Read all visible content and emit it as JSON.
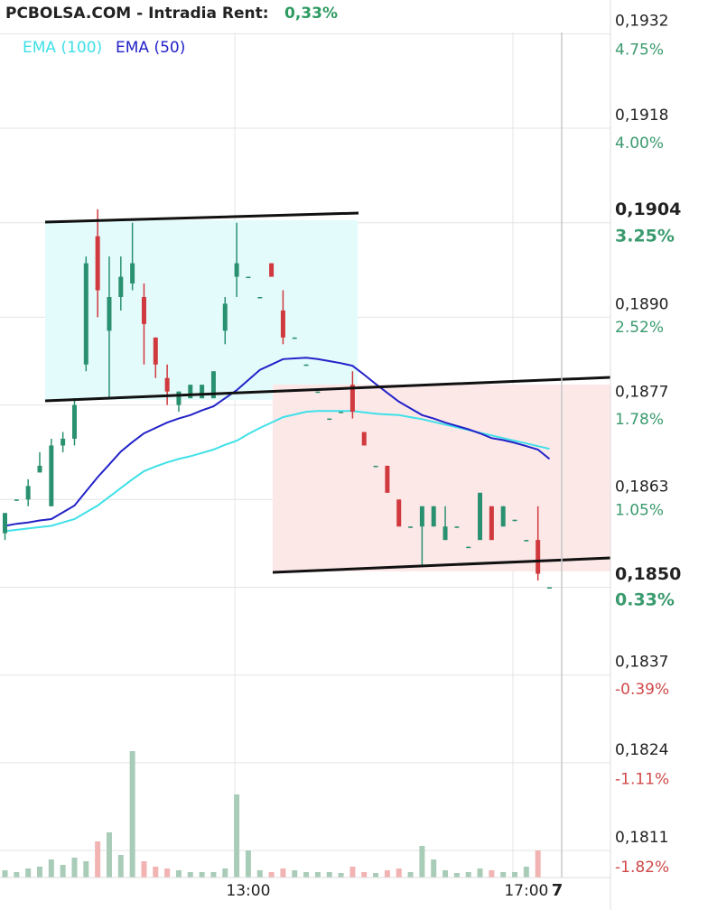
{
  "chart_data": {
    "type": "candlestick",
    "title": "PCBOLSA.COM - Intradia  Rent:",
    "subtitle": "0,33%",
    "cursor_label": "7",
    "categories": [
      null,
      null,
      null,
      null,
      null,
      null,
      null,
      null,
      null,
      null,
      null,
      null,
      null,
      null,
      null,
      null,
      null,
      null,
      null,
      null,
      null,
      "13:00",
      null,
      null,
      null,
      null,
      null,
      null,
      null,
      null,
      null,
      null,
      null,
      null,
      null,
      null,
      null,
      null,
      null,
      null,
      null,
      null,
      null,
      null,
      null,
      "17:00",
      null,
      null
    ],
    "ohlc": {
      "open": [
        0.1858,
        0.1863,
        0.1863,
        0.1867,
        0.1862,
        0.1871,
        0.1872,
        0.1883,
        0.1902,
        0.1888,
        0.1893,
        0.1895,
        0.1893,
        0.1887,
        0.1881,
        0.1877,
        0.1878,
        0.1878,
        0.1878,
        0.1888,
        0.1896,
        0.1896,
        0.1893,
        0.1898,
        0.1891,
        0.1887,
        0.1883,
        0.1879,
        0.1875,
        0.1876,
        0.188,
        0.1873,
        0.1868,
        0.1868,
        0.1863,
        0.1859,
        0.1859,
        0.1859,
        0.1857,
        0.1859,
        0.1856,
        0.1857,
        0.1862,
        0.1859,
        0.186,
        0.1857,
        0.1857,
        0.185
      ],
      "high": [
        0.1861,
        0.1863,
        0.1866,
        0.187,
        0.1872,
        0.1873,
        0.1878,
        0.1899,
        0.1906,
        0.1899,
        0.1899,
        0.1904,
        0.1895,
        0.1887,
        0.1883,
        0.1879,
        0.188,
        0.188,
        0.1882,
        0.1893,
        0.1904,
        0.1896,
        0.1893,
        0.1898,
        0.1894,
        0.1887,
        0.1883,
        0.1879,
        0.1875,
        0.1876,
        0.1882,
        0.1873,
        0.1868,
        0.1868,
        0.1863,
        0.1859,
        0.1862,
        0.1862,
        0.1862,
        0.1859,
        0.1856,
        0.1864,
        0.1862,
        0.1862,
        0.186,
        0.1857,
        0.1862,
        0.185
      ],
      "low": [
        0.1857,
        0.1863,
        0.1862,
        0.1867,
        0.1862,
        0.187,
        0.1871,
        0.1882,
        0.189,
        0.1878,
        0.1891,
        0.1894,
        0.1883,
        0.1881,
        0.1877,
        0.1876,
        0.1878,
        0.1878,
        0.1878,
        0.1886,
        0.1893,
        0.1896,
        0.1893,
        0.1896,
        0.1886,
        0.1887,
        0.1883,
        0.1879,
        0.1875,
        0.1876,
        0.1875,
        0.1871,
        0.1868,
        0.1864,
        0.1859,
        0.1859,
        0.1853,
        0.1859,
        0.1857,
        0.1859,
        0.1856,
        0.1857,
        0.1857,
        0.1859,
        0.186,
        0.1857,
        0.1851,
        0.185
      ],
      "close": [
        0.1861,
        0.1863,
        0.1865,
        0.1868,
        0.1871,
        0.1872,
        0.1877,
        0.1898,
        0.1894,
        0.1893,
        0.1896,
        0.1898,
        0.1889,
        0.1883,
        0.1879,
        0.1879,
        0.188,
        0.188,
        0.1882,
        0.1892,
        0.1898,
        0.1896,
        0.1893,
        0.1896,
        0.1887,
        0.1887,
        0.1883,
        0.1879,
        0.1875,
        0.1876,
        0.1876,
        0.1871,
        0.1868,
        0.1864,
        0.1859,
        0.1859,
        0.1862,
        0.1862,
        0.1859,
        0.1859,
        0.1856,
        0.1864,
        0.1857,
        0.1862,
        0.186,
        0.1857,
        0.1852,
        0.185
      ]
    },
    "up_color": "#2a9170",
    "down_color": "#d0393e",
    "series": [
      {
        "name": "EMA (100)",
        "color": "#3fe0e8",
        "values": [
          0.18583,
          0.18585,
          0.18587,
          0.18589,
          0.18591,
          0.18596,
          0.18601,
          0.18611,
          0.18621,
          0.18634,
          0.18647,
          0.1866,
          0.18672,
          0.18679,
          0.18685,
          0.1869,
          0.18694,
          0.18699,
          0.18704,
          0.18711,
          0.18717,
          0.18727,
          0.18736,
          0.18744,
          0.18752,
          0.18756,
          0.1876,
          0.18761,
          0.18761,
          0.18761,
          0.18761,
          0.18759,
          0.18757,
          0.18756,
          0.18755,
          0.18752,
          0.18749,
          0.18745,
          0.18741,
          0.18737,
          0.18733,
          0.18729,
          0.18725,
          0.18721,
          0.18717,
          0.18713,
          0.18709,
          0.18705
        ]
      },
      {
        "name": "EMA (50)",
        "color": "#2222c8",
        "values": [
          0.18591,
          0.18594,
          0.18596,
          0.18599,
          0.18601,
          0.18611,
          0.18621,
          0.18642,
          0.18663,
          0.18682,
          0.18701,
          0.18715,
          0.18728,
          0.18736,
          0.18744,
          0.1875,
          0.18755,
          0.18762,
          0.18768,
          0.1878,
          0.18792,
          0.18807,
          0.18822,
          0.1883,
          0.18838,
          0.18839,
          0.1884,
          0.18838,
          0.18835,
          0.18832,
          0.18828,
          0.18815,
          0.18801,
          0.18788,
          0.18775,
          0.18765,
          0.18755,
          0.1875,
          0.18744,
          0.18739,
          0.18734,
          0.18728,
          0.18721,
          0.18718,
          0.18714,
          0.18709,
          0.18704,
          0.1869
        ]
      }
    ],
    "volume": {
      "values": [
        8,
        6,
        10,
        12,
        20,
        14,
        22,
        18,
        40,
        50,
        25,
        140,
        18,
        12,
        10,
        8,
        6,
        6,
        6,
        10,
        92,
        30,
        8,
        6,
        10,
        8,
        6,
        6,
        6,
        5,
        12,
        6,
        5,
        8,
        10,
        6,
        35,
        20,
        8,
        5,
        6,
        10,
        8,
        6,
        6,
        12,
        30,
        0
      ],
      "ylim": [
        0,
        160
      ]
    },
    "ylim": [
      0.1807,
      0.1937
    ],
    "yticks": [
      {
        "value": 0.1932,
        "label": "0,1932"
      },
      {
        "value": 0.1918,
        "label": "0,1918"
      },
      {
        "value": 0.1904,
        "label": "0,1904"
      },
      {
        "value": 0.189,
        "label": "0,1890"
      },
      {
        "value": 0.1877,
        "label": "0,1877"
      },
      {
        "value": 0.1863,
        "label": "0,1863"
      },
      {
        "value": 0.185,
        "label": "0,1850"
      },
      {
        "value": 0.1837,
        "label": "0,1837"
      },
      {
        "value": 0.1824,
        "label": "0,1824"
      },
      {
        "value": 0.1811,
        "label": "0,1811"
      }
    ],
    "y2lim": [
      -2.0,
      5.05
    ],
    "y2ticks": [
      {
        "value": 4.75,
        "label": "4.75%"
      },
      {
        "value": 4.0,
        "label": "4.00%"
      },
      {
        "value": 3.25,
        "label": "3.25%"
      },
      {
        "value": 2.52,
        "label": "2.52%"
      },
      {
        "value": 1.78,
        "label": "1.78%"
      },
      {
        "value": 1.05,
        "label": "1.05%"
      },
      {
        "value": 0.33,
        "label": "0.33%"
      },
      {
        "value": -0.39,
        "label": "-0.39%"
      },
      {
        "value": -1.11,
        "label": "-1.11%"
      },
      {
        "value": -1.82,
        "label": "-1.82%"
      }
    ],
    "bold_yticks": [
      2,
      6
    ],
    "grid": true
  }
}
